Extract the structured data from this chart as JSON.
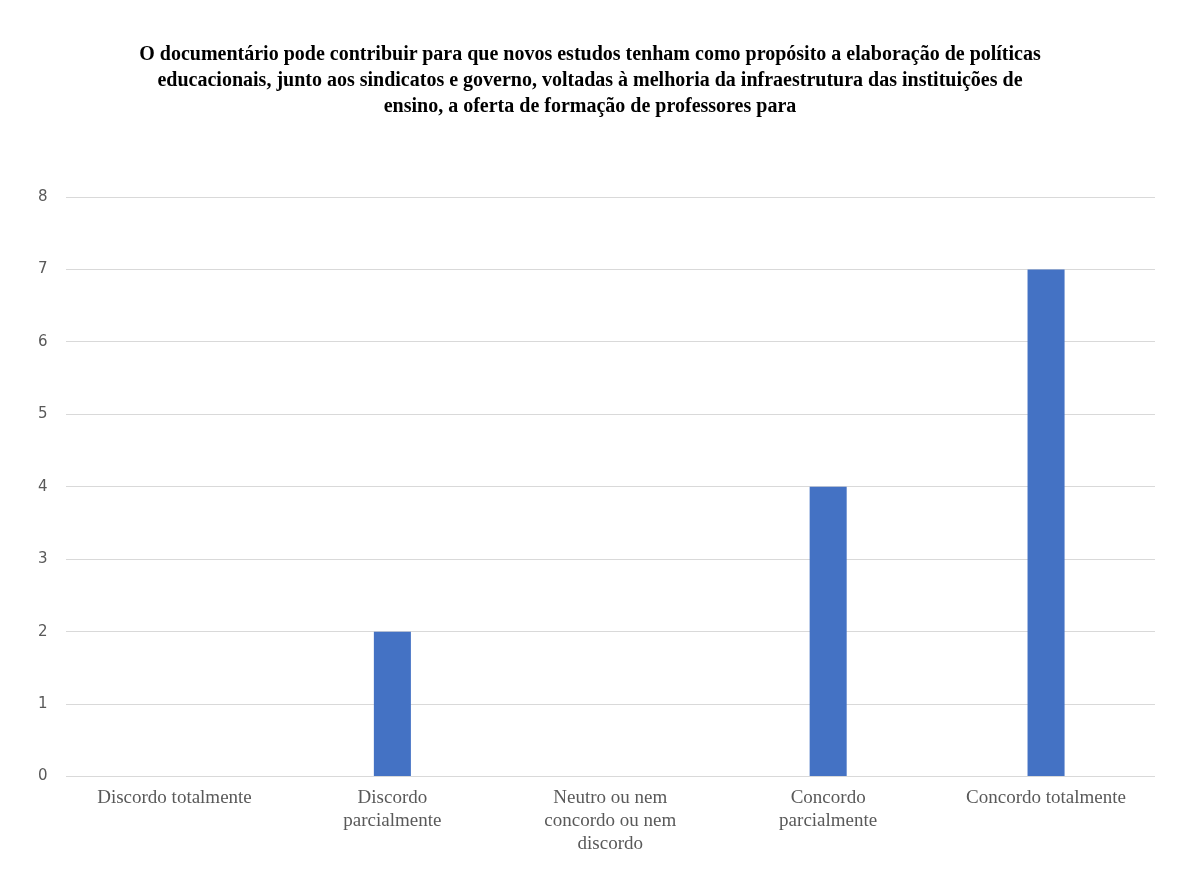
{
  "chart_data": {
    "type": "bar",
    "title": "O documentário pode contribuir para que novos estudos tenham como propósito a elaboração de políticas educacionais, junto aos sindicatos e governo, voltadas à melhoria da infraestrutura das instituições de ensino, a oferta de formação de professores para",
    "categories": [
      "Discordo totalmente",
      "Discordo parcialmente",
      "Neutro ou nem concordo ou nem discordo",
      "Concordo parcialmente",
      "Concordo totalmente"
    ],
    "values": [
      0,
      2,
      0,
      4,
      7
    ],
    "color": "#4472c4",
    "ylim": [
      0,
      8
    ],
    "yticks": [
      0,
      1,
      2,
      3,
      4,
      5,
      6,
      7,
      8
    ],
    "grid": "y",
    "legend": false
  }
}
